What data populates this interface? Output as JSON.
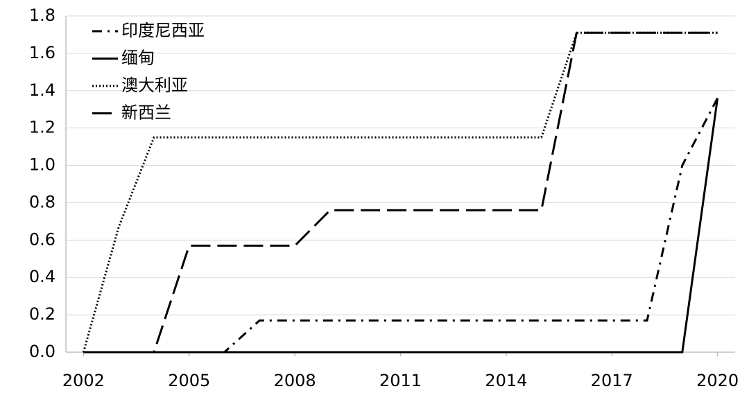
{
  "chart_data": {
    "type": "line",
    "x": [
      2002,
      2003,
      2004,
      2005,
      2006,
      2007,
      2008,
      2009,
      2010,
      2011,
      2012,
      2013,
      2014,
      2015,
      2016,
      2017,
      2018,
      2019,
      2020
    ],
    "series": [
      {
        "name": "印度尼西亚",
        "color": "#000000",
        "style": "dash-dot",
        "values": [
          0,
          0,
          0,
          0,
          0,
          0.17,
          0.17,
          0.17,
          0.17,
          0.17,
          0.17,
          0.17,
          0.17,
          0.17,
          0.17,
          0.17,
          0.17,
          1.0,
          1.36
        ]
      },
      {
        "name": "缅甸",
        "color": "#000000",
        "style": "solid",
        "values": [
          0,
          0,
          0,
          0,
          0,
          0,
          0,
          0,
          0,
          0,
          0,
          0,
          0,
          0,
          0,
          0,
          0,
          0,
          1.36
        ]
      },
      {
        "name": "澳大利亚",
        "color": "#000000",
        "style": "dotted",
        "values": [
          0,
          0.67,
          1.15,
          1.15,
          1.15,
          1.15,
          1.15,
          1.15,
          1.15,
          1.15,
          1.15,
          1.15,
          1.15,
          1.15,
          1.71,
          1.71,
          1.71,
          1.71,
          1.71
        ]
      },
      {
        "name": "新西兰",
        "color": "#000000",
        "style": "dashed",
        "values": [
          0,
          0,
          0,
          0.57,
          0.57,
          0.57,
          0.57,
          0.76,
          0.76,
          0.76,
          0.76,
          0.76,
          0.76,
          0.76,
          1.71,
          1.71,
          1.71,
          1.71,
          1.71
        ]
      }
    ],
    "xlim": [
      2001.5,
      2020.5
    ],
    "xticks": [
      2002,
      2005,
      2008,
      2011,
      2014,
      2017,
      2020
    ],
    "ylim": [
      0,
      1.8
    ],
    "yticks": [
      {
        "value": 0,
        "label": "0.0"
      },
      {
        "value": 0.2,
        "label": "0.2"
      },
      {
        "value": 0.4,
        "label": "0.4"
      },
      {
        "value": 0.6,
        "label": "0.6"
      },
      {
        "value": 0.8,
        "label": "0.8"
      },
      {
        "value": 1.0,
        "label": "1.0"
      },
      {
        "value": 1.2,
        "label": "1.2"
      },
      {
        "value": 1.4,
        "label": "1.4"
      },
      {
        "value": 1.6,
        "label": "1.6"
      },
      {
        "value": 1.8,
        "label": "1.8"
      }
    ],
    "grid": true,
    "legend": "upper-left"
  }
}
